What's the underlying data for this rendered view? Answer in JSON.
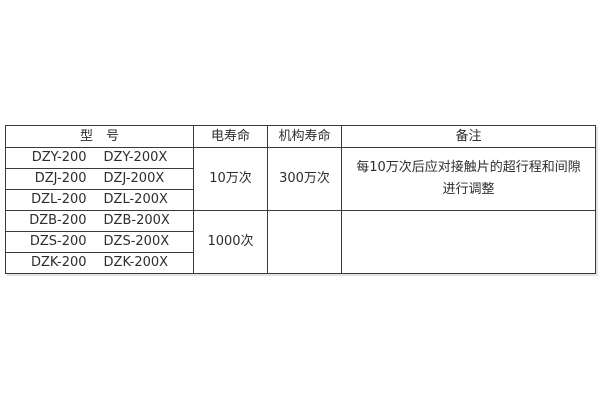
{
  "page": {
    "background_color": "#ffffff",
    "border_color": "#3a3a3a",
    "text_color": "#2d2d2d"
  },
  "table": {
    "headers": {
      "model": "型　号",
      "electrical_life": "电寿命",
      "mechanism_life": "机构寿命",
      "remarks": "备注"
    },
    "rows": [
      {
        "model_a": "DZY-200",
        "model_b": "DZY-200X"
      },
      {
        "model_a": "DZJ-200",
        "model_b": "DZJ-200X"
      },
      {
        "model_a": "DZL-200",
        "model_b": "DZL-200X"
      },
      {
        "model_a": "DZB-200",
        "model_b": "DZB-200X"
      },
      {
        "model_a": "DZS-200",
        "model_b": "DZS-200X"
      },
      {
        "model_a": "DZK-200",
        "model_b": "DZK-200X"
      }
    ],
    "groups": [
      {
        "electrical_life": "10万次",
        "mechanism_life": "300万次",
        "remark_line1": "每10万次后应对接触片的超行程和间隙",
        "remark_line2": "进行调整"
      },
      {
        "electrical_life": "1000次",
        "mechanism_life": "",
        "remark_line1": "",
        "remark_line2": ""
      }
    ]
  }
}
